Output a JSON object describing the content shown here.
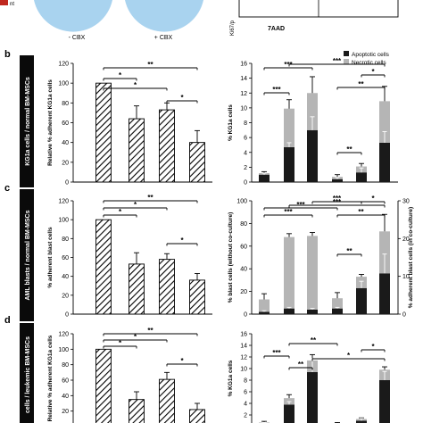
{
  "top": {
    "legend_label": "nt",
    "circle_labels": [
      "- CBX",
      "+ CBX"
    ],
    "flow_ylabel": "Ki67/p",
    "flow_xlabel": "7AAD"
  },
  "colors": {
    "accent_red": "#c0281f",
    "circle_blue": "#a9d3ef",
    "sidebar_black": "#0a0a0a",
    "apoptotic": "#1a1a1a",
    "necrotic": "#b5b5b5"
  },
  "legend": {
    "apoptotic": "Apoptotic cells",
    "necrotic": "Necrotic cells"
  },
  "panels": [
    {
      "letter": "b",
      "side_label": "KG1a cells / normal BM-MSCs"
    },
    {
      "letter": "c",
      "side_label": "AML blasts / normal BM-MSCs"
    },
    {
      "letter": "d",
      "side_label": "cells / leukemic BM-MSCs"
    }
  ],
  "chart_data": [
    {
      "type": "bar",
      "panel": "b-left",
      "ylabel": "Relative % adherent KG1a cells",
      "ylim": [
        0,
        120
      ],
      "yticks": [
        "0",
        "20",
        "40",
        "60",
        "80",
        "100",
        "120"
      ],
      "values": [
        100,
        64,
        73,
        40
      ],
      "errors": [
        0,
        13,
        7,
        12
      ],
      "hatched": [
        true,
        true,
        true,
        true
      ],
      "significance": [
        "**",
        "*",
        "*",
        "*"
      ]
    },
    {
      "type": "bar",
      "panel": "b-right",
      "stacked": true,
      "ylabel": "% KG1a cells",
      "ylim": [
        0,
        16
      ],
      "yticks": [
        "0",
        "2",
        "4",
        "6",
        "8",
        "10",
        "12",
        "14",
        "16"
      ],
      "series": [
        {
          "name": "Apoptotic cells",
          "values": [
            1.0,
            4.7,
            7.0,
            0.4,
            1.3,
            5.3
          ],
          "errors": [
            0.2,
            0.6,
            1.8,
            0.2,
            0.6,
            1.5
          ]
        },
        {
          "name": "Necrotic cells",
          "values": [
            0.2,
            5.2,
            5.0,
            0.3,
            0.8,
            5.6
          ],
          "errors": [
            0.2,
            1.2,
            2.2,
            0.3,
            0.4,
            2.0
          ]
        }
      ],
      "significance": [
        "***",
        "***",
        "***",
        "**",
        "**",
        "*"
      ]
    },
    {
      "type": "bar",
      "panel": "c-left",
      "ylabel": "% adherent blast cells",
      "ylim": [
        0,
        120
      ],
      "yticks": [
        "0",
        "20",
        "40",
        "60",
        "80",
        "100",
        "120"
      ],
      "values": [
        100,
        53,
        58,
        36
      ],
      "errors": [
        0,
        12,
        6,
        7
      ],
      "hatched": [
        true,
        true,
        true,
        true
      ],
      "significance": [
        "**",
        "*",
        "*",
        "*"
      ]
    },
    {
      "type": "bar",
      "panel": "c-right",
      "stacked": true,
      "ylabel": "% blast cells (without co-culture)",
      "ylabel_right": "% adherent blast cells (in co-culture)",
      "ylim": [
        0,
        100
      ],
      "yticks": [
        "0",
        "20",
        "40",
        "60",
        "80",
        "100"
      ],
      "ylim_right": [
        0,
        30
      ],
      "yticks_right": [
        "0",
        "10",
        "20",
        "30"
      ],
      "series": [
        {
          "name": "Apoptotic cells",
          "values": [
            2,
            5,
            4,
            5,
            23,
            36
          ],
          "errors": [
            1,
            1,
            1,
            1,
            6,
            17
          ]
        },
        {
          "name": "Necrotic cells",
          "values": [
            11,
            63,
            65,
            9,
            10,
            37
          ],
          "errors": [
            5,
            3,
            3,
            5,
            2,
            15
          ]
        }
      ],
      "significance": [
        "***",
        "***",
        "***",
        "***",
        "**",
        "*",
        "**"
      ]
    },
    {
      "type": "bar",
      "panel": "d-left",
      "ylabel": "Relative % adherent KG1a cells",
      "ylim": [
        0,
        120
      ],
      "yticks": [
        "0",
        "20",
        "40",
        "60",
        "80",
        "100",
        "120"
      ],
      "values": [
        100,
        35,
        61,
        22
      ],
      "errors": [
        0,
        10,
        9,
        8
      ],
      "hatched": [
        true,
        true,
        true,
        true
      ],
      "significance": [
        "**",
        "*",
        "*",
        "*"
      ]
    },
    {
      "type": "bar",
      "panel": "d-right",
      "stacked": true,
      "ylabel": "% KG1a cells",
      "ylim": [
        0,
        16
      ],
      "yticks": [
        "0",
        "2",
        "4",
        "6",
        "8",
        "10",
        "12",
        "14",
        "16"
      ],
      "series": [
        {
          "name": "Apoptotic cells",
          "values": [
            0.5,
            3.8,
            9.4,
            0.3,
            1.0,
            8.0
          ],
          "errors": [
            0.2,
            0.5,
            2.3,
            0.2,
            0.4,
            1.5
          ]
        },
        {
          "name": "Necrotic cells",
          "values": [
            0.2,
            1.1,
            2.0,
            0.2,
            0.3,
            1.8
          ],
          "errors": [
            0.2,
            0.6,
            1.0,
            0.2,
            0.2,
            0.5
          ]
        }
      ],
      "significance": [
        "***",
        "**",
        "**",
        "*",
        "*"
      ]
    }
  ]
}
